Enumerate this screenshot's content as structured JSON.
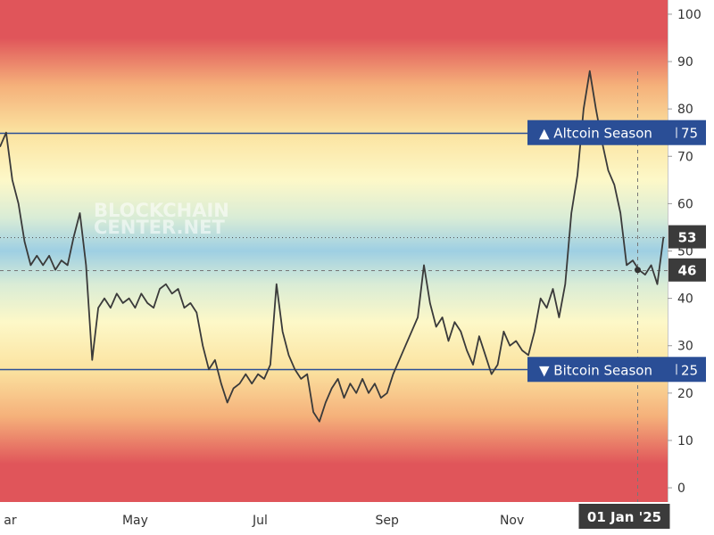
{
  "chart_data": {
    "type": "line",
    "title": "",
    "xlabel": "",
    "ylabel": "",
    "ylim": [
      -3,
      103
    ],
    "y_ticks": [
      0,
      10,
      20,
      30,
      40,
      50,
      60,
      70,
      80,
      90,
      100
    ],
    "x_ticks": [
      {
        "label": "ar",
        "x": "2024-03-01"
      },
      {
        "label": "May",
        "x": "2024-05-01"
      },
      {
        "label": "Jul",
        "x": "2024-07-01"
      },
      {
        "label": "Sep",
        "x": "2024-09-01"
      },
      {
        "label": "Nov",
        "x": "2024-11-01"
      }
    ],
    "x_range": [
      "2024-02-25",
      "2025-01-16"
    ],
    "crosshair": {
      "x": "2025-01-01",
      "x_label": "01 Jan '25",
      "y": 46,
      "y_label": "46"
    },
    "last_value": {
      "value": 53,
      "label": "53"
    },
    "thresholds": [
      {
        "name": "altcoin-season",
        "label": "▲ Altcoin Season",
        "value": 75,
        "value_label": "75",
        "color": "#2a4e96"
      },
      {
        "name": "bitcoin-season",
        "label": "▼ Bitcoin Season",
        "value": 25,
        "value_label": "25",
        "color": "#2a4e96"
      }
    ],
    "watermark": "BLOCKCHAIN CENTER.NET",
    "colors": {
      "line": "#3a3a3a",
      "axis_bg": "#ffffff",
      "tag_dark": "#3b3b3b",
      "threshold": "#2a4e96",
      "band_red": "#e0555a",
      "band_yellow": "#fdf8c8",
      "band_blue": "#9ecfe3"
    },
    "series": [
      {
        "x": [
          "2024-02-25",
          "2024-02-28",
          "2024-03-02",
          "2024-03-05",
          "2024-03-08",
          "2024-03-11",
          "2024-03-14",
          "2024-03-17",
          "2024-03-20",
          "2024-03-23",
          "2024-03-26",
          "2024-03-29",
          "2024-04-01",
          "2024-04-04",
          "2024-04-07",
          "2024-04-10",
          "2024-04-13",
          "2024-04-16",
          "2024-04-19",
          "2024-04-22",
          "2024-04-25",
          "2024-04-28",
          "2024-05-01",
          "2024-05-04",
          "2024-05-07",
          "2024-05-10",
          "2024-05-13",
          "2024-05-16",
          "2024-05-19",
          "2024-05-22",
          "2024-05-25",
          "2024-05-28",
          "2024-05-31",
          "2024-06-03",
          "2024-06-06",
          "2024-06-09",
          "2024-06-12",
          "2024-06-15",
          "2024-06-18",
          "2024-06-21",
          "2024-06-24",
          "2024-06-27",
          "2024-06-30",
          "2024-07-03",
          "2024-07-06",
          "2024-07-09",
          "2024-07-12",
          "2024-07-15",
          "2024-07-18",
          "2024-07-21",
          "2024-07-24",
          "2024-07-27",
          "2024-07-30",
          "2024-08-02",
          "2024-08-05",
          "2024-08-08",
          "2024-08-11",
          "2024-08-14",
          "2024-08-17",
          "2024-08-20",
          "2024-08-23",
          "2024-08-26",
          "2024-08-29",
          "2024-09-01",
          "2024-09-04",
          "2024-09-07",
          "2024-09-10",
          "2024-09-13",
          "2024-09-16",
          "2024-09-19",
          "2024-09-22",
          "2024-09-25",
          "2024-09-28",
          "2024-10-01",
          "2024-10-04",
          "2024-10-07",
          "2024-10-10",
          "2024-10-13",
          "2024-10-16",
          "2024-10-19",
          "2024-10-22",
          "2024-10-25",
          "2024-10-28",
          "2024-10-31",
          "2024-11-03",
          "2024-11-06",
          "2024-11-09",
          "2024-11-12",
          "2024-11-15",
          "2024-11-18",
          "2024-11-21",
          "2024-11-24",
          "2024-11-27",
          "2024-11-30",
          "2024-12-03",
          "2024-12-06",
          "2024-12-09",
          "2024-12-12",
          "2024-12-15",
          "2024-12-18",
          "2024-12-21",
          "2024-12-24",
          "2024-12-27",
          "2024-12-30",
          "2025-01-02",
          "2025-01-05",
          "2025-01-08",
          "2025-01-11",
          "2025-01-14"
        ],
        "y": [
          72,
          75,
          65,
          60,
          52,
          47,
          49,
          47,
          49,
          46,
          48,
          47,
          53,
          58,
          47,
          27,
          38,
          40,
          38,
          41,
          39,
          40,
          38,
          41,
          39,
          38,
          42,
          43,
          41,
          42,
          38,
          39,
          37,
          30,
          25,
          27,
          22,
          18,
          21,
          22,
          24,
          22,
          24,
          23,
          26,
          43,
          33,
          28,
          25,
          23,
          24,
          16,
          14,
          18,
          21,
          23,
          19,
          22,
          20,
          23,
          20,
          22,
          19,
          20,
          24,
          27,
          30,
          33,
          36,
          47,
          39,
          34,
          36,
          31,
          35,
          33,
          29,
          26,
          32,
          28,
          24,
          26,
          33,
          30,
          31,
          29,
          28,
          33,
          40,
          38,
          42,
          36,
          43,
          58,
          66,
          80,
          88,
          80,
          73,
          67,
          64,
          58,
          47,
          48,
          46,
          45,
          47,
          43,
          53
        ]
      }
    ]
  }
}
